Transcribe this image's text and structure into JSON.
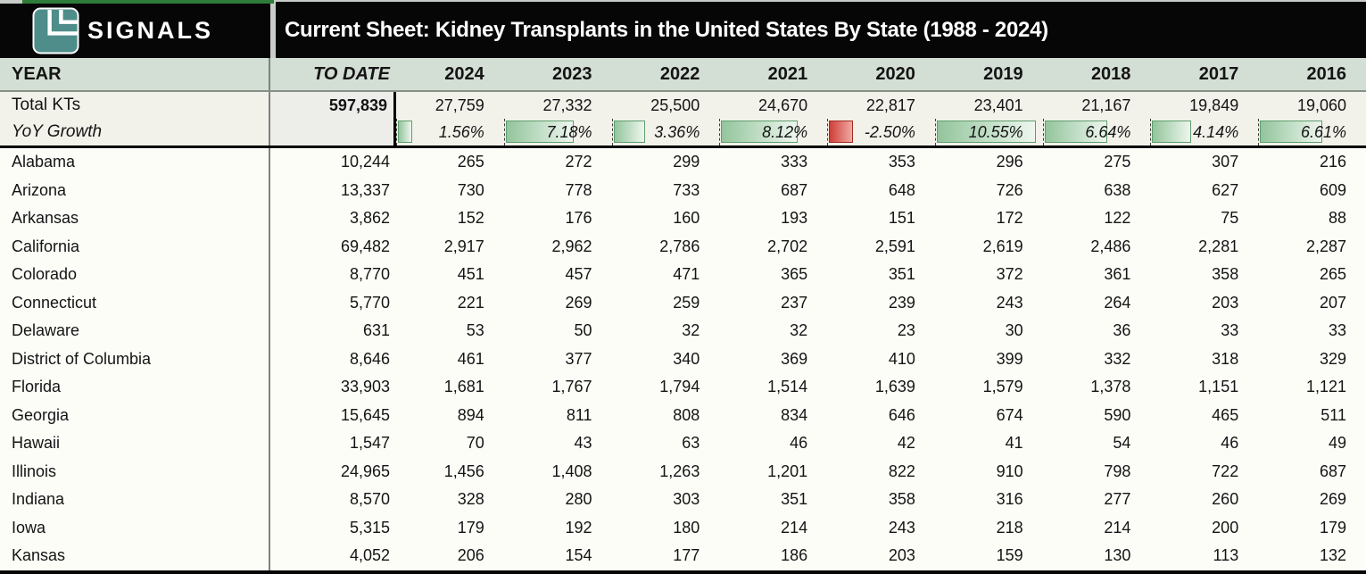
{
  "brand": {
    "name": "SIGNALS"
  },
  "title": "Current Sheet: Kidney Transplants in the United States By State (1988 - 2024)",
  "colors": {
    "topbar_bg": "#060606",
    "accent_strip_green": "#2f7c39",
    "logo_teal": "#4e8d8a",
    "header_row_bg": "#d3ded5",
    "summary_band_bg": "#f2f1ea",
    "to_date_cell_bg": "#ededea",
    "positive_bar_fill": "#93c59c",
    "positive_bar_border": "#5f9e6e",
    "negative_bar_fill": "#cf4038",
    "negative_bar_border": "#a52a22"
  },
  "table": {
    "header": {
      "year_label": "YEAR",
      "to_date_label": "TO DATE",
      "years": [
        "2024",
        "2023",
        "2022",
        "2021",
        "2020",
        "2019",
        "2018",
        "2017",
        "2016"
      ]
    },
    "summary": {
      "total_label": "Total KTs",
      "total_to_date": "597,839",
      "total_values": [
        "27,759",
        "27,332",
        "25,500",
        "24,670",
        "22,817",
        "23,401",
        "21,167",
        "19,849",
        "19,060"
      ],
      "yoy_label": "YoY Growth",
      "yoy_values": [
        {
          "text": "1.56%",
          "value": 1.56
        },
        {
          "text": "7.18%",
          "value": 7.18
        },
        {
          "text": "3.36%",
          "value": 3.36
        },
        {
          "text": "8.12%",
          "value": 8.12
        },
        {
          "text": "-2.50%",
          "value": -2.5
        },
        {
          "text": "10.55%",
          "value": 10.55
        },
        {
          "text": "6.64%",
          "value": 6.64
        },
        {
          "text": "4.14%",
          "value": 4.14
        },
        {
          "text": "6.61%",
          "value": 6.61
        }
      ],
      "yoy_bar_max": 10.55,
      "yoy_bar_max_width_pct": 93
    },
    "rows": [
      {
        "state": "Alabama",
        "to_date": "10,244",
        "values": [
          "265",
          "272",
          "299",
          "333",
          "353",
          "296",
          "275",
          "307",
          "216"
        ]
      },
      {
        "state": "Arizona",
        "to_date": "13,337",
        "values": [
          "730",
          "778",
          "733",
          "687",
          "648",
          "726",
          "638",
          "627",
          "609"
        ]
      },
      {
        "state": "Arkansas",
        "to_date": "3,862",
        "values": [
          "152",
          "176",
          "160",
          "193",
          "151",
          "172",
          "122",
          "75",
          "88"
        ]
      },
      {
        "state": "California",
        "to_date": "69,482",
        "values": [
          "2,917",
          "2,962",
          "2,786",
          "2,702",
          "2,591",
          "2,619",
          "2,486",
          "2,281",
          "2,287"
        ]
      },
      {
        "state": "Colorado",
        "to_date": "8,770",
        "values": [
          "451",
          "457",
          "471",
          "365",
          "351",
          "372",
          "361",
          "358",
          "265"
        ]
      },
      {
        "state": "Connecticut",
        "to_date": "5,770",
        "values": [
          "221",
          "269",
          "259",
          "237",
          "239",
          "243",
          "264",
          "203",
          "207"
        ]
      },
      {
        "state": "Delaware",
        "to_date": "631",
        "values": [
          "53",
          "50",
          "32",
          "32",
          "23",
          "30",
          "36",
          "33",
          "33"
        ]
      },
      {
        "state": "District of Columbia",
        "to_date": "8,646",
        "values": [
          "461",
          "377",
          "340",
          "369",
          "410",
          "399",
          "332",
          "318",
          "329"
        ]
      },
      {
        "state": "Florida",
        "to_date": "33,903",
        "values": [
          "1,681",
          "1,767",
          "1,794",
          "1,514",
          "1,639",
          "1,579",
          "1,378",
          "1,151",
          "1,121"
        ]
      },
      {
        "state": "Georgia",
        "to_date": "15,645",
        "values": [
          "894",
          "811",
          "808",
          "834",
          "646",
          "674",
          "590",
          "465",
          "511"
        ]
      },
      {
        "state": "Hawaii",
        "to_date": "1,547",
        "values": [
          "70",
          "43",
          "63",
          "46",
          "42",
          "41",
          "54",
          "46",
          "49"
        ]
      },
      {
        "state": "Illinois",
        "to_date": "24,965",
        "values": [
          "1,456",
          "1,408",
          "1,263",
          "1,201",
          "822",
          "910",
          "798",
          "722",
          "687"
        ]
      },
      {
        "state": "Indiana",
        "to_date": "8,570",
        "values": [
          "328",
          "280",
          "303",
          "351",
          "358",
          "316",
          "277",
          "260",
          "269"
        ]
      },
      {
        "state": "Iowa",
        "to_date": "5,315",
        "values": [
          "179",
          "192",
          "180",
          "214",
          "243",
          "218",
          "214",
          "200",
          "179"
        ]
      },
      {
        "state": "Kansas",
        "to_date": "4,052",
        "values": [
          "206",
          "154",
          "177",
          "186",
          "203",
          "159",
          "130",
          "113",
          "132"
        ]
      }
    ]
  }
}
